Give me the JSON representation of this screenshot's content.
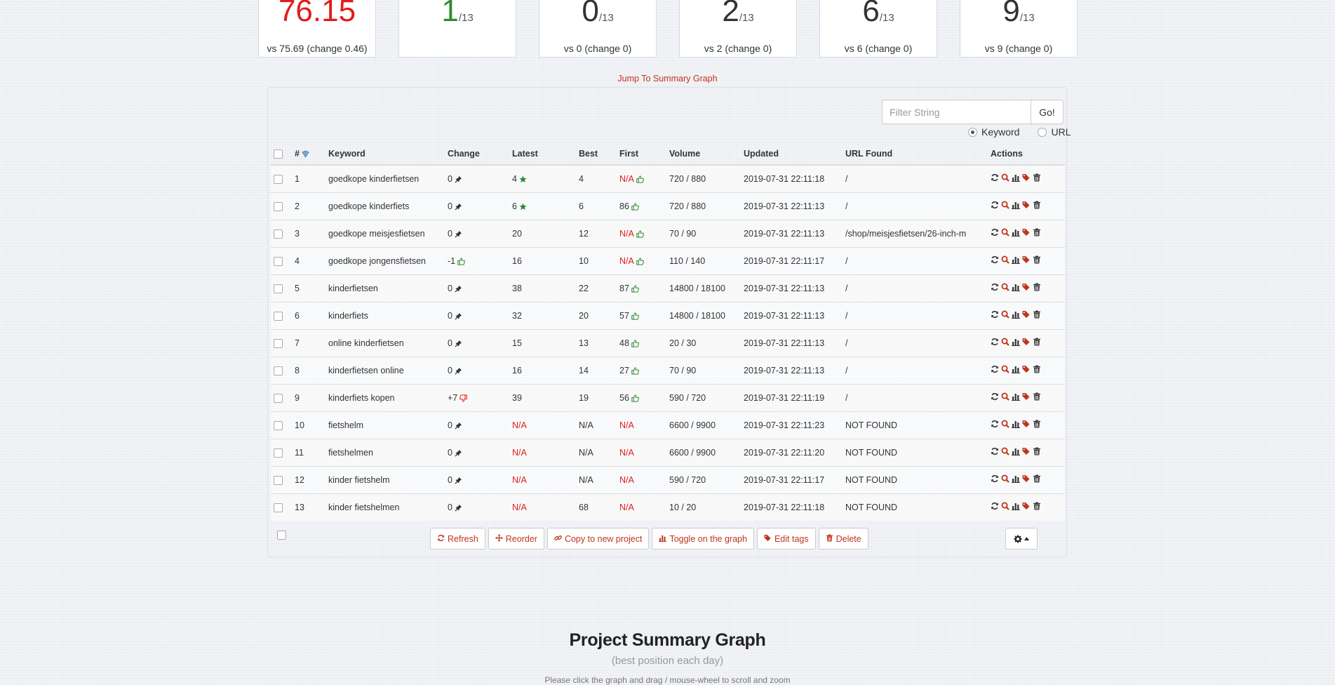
{
  "stats": [
    {
      "value": "76.15",
      "total": "",
      "vs": "vs 75.69 (change 0.46)",
      "tone": "red"
    },
    {
      "value": "1",
      "total": "/13",
      "vs": "",
      "tone": "green"
    },
    {
      "value": "0",
      "total": "/13",
      "vs": "vs 0 (change 0)",
      "tone": ""
    },
    {
      "value": "2",
      "total": "/13",
      "vs": "vs 2 (change 0)",
      "tone": ""
    },
    {
      "value": "6",
      "total": "/13",
      "vs": "vs 6 (change 0)",
      "tone": ""
    },
    {
      "value": "9",
      "total": "/13",
      "vs": "vs 9 (change 0)",
      "tone": ""
    }
  ],
  "jump_link": "Jump To Summary Graph",
  "filter": {
    "placeholder": "Filter String",
    "go_label": "Go!",
    "radio_keyword": "Keyword",
    "radio_url": "URL"
  },
  "table": {
    "headers": {
      "num": "#",
      "keyword": "Keyword",
      "change": "Change",
      "latest": "Latest",
      "best": "Best",
      "first": "First",
      "volume": "Volume",
      "updated": "Updated",
      "url": "URL Found",
      "actions": "Actions"
    },
    "rows": [
      {
        "num": "1",
        "keyword": "goedkope kinderfietsen",
        "change": "0",
        "change_icon": "pin-icon",
        "latest": "4",
        "latest_icon": "star-icon",
        "best": "4",
        "first": "N/A",
        "first_icon": "thumbs-up-icon",
        "volume": "720 / 880",
        "updated": "2019-07-31 22:11:18",
        "url": "/"
      },
      {
        "num": "2",
        "keyword": "goedkope kinderfiets",
        "change": "0",
        "change_icon": "pin-icon",
        "latest": "6",
        "latest_icon": "star-icon",
        "best": "6",
        "first": "86",
        "first_icon": "thumbs-up-icon",
        "volume": "720 / 880",
        "updated": "2019-07-31 22:11:13",
        "url": "/"
      },
      {
        "num": "3",
        "keyword": "goedkope meisjesfietsen",
        "change": "0",
        "change_icon": "pin-icon",
        "latest": "20",
        "latest_icon": "",
        "best": "12",
        "first": "N/A",
        "first_icon": "thumbs-up-icon",
        "volume": "70 / 90",
        "updated": "2019-07-31 22:11:13",
        "url": "/shop/meisjesfietsen/26-inch-m"
      },
      {
        "num": "4",
        "keyword": "goedkope jongensfietsen",
        "change": "-1",
        "change_icon": "thumbs-up-icon",
        "latest": "16",
        "latest_icon": "",
        "best": "10",
        "first": "N/A",
        "first_icon": "thumbs-up-icon",
        "volume": "110 / 140",
        "updated": "2019-07-31 22:11:17",
        "url": "/"
      },
      {
        "num": "5",
        "keyword": "kinderfietsen",
        "change": "0",
        "change_icon": "pin-icon",
        "latest": "38",
        "latest_icon": "",
        "best": "22",
        "first": "87",
        "first_icon": "thumbs-up-icon",
        "volume": "14800 / 18100",
        "updated": "2019-07-31 22:11:13",
        "url": "/"
      },
      {
        "num": "6",
        "keyword": "kinderfiets",
        "change": "0",
        "change_icon": "pin-icon",
        "latest": "32",
        "latest_icon": "",
        "best": "20",
        "first": "57",
        "first_icon": "thumbs-up-icon",
        "volume": "14800 / 18100",
        "updated": "2019-07-31 22:11:13",
        "url": "/"
      },
      {
        "num": "7",
        "keyword": "online kinderfietsen",
        "change": "0",
        "change_icon": "pin-icon",
        "latest": "15",
        "latest_icon": "",
        "best": "13",
        "first": "48",
        "first_icon": "thumbs-up-icon",
        "volume": "20 / 30",
        "updated": "2019-07-31 22:11:13",
        "url": "/"
      },
      {
        "num": "8",
        "keyword": "kinderfietsen online",
        "change": "0",
        "change_icon": "pin-icon",
        "latest": "16",
        "latest_icon": "",
        "best": "14",
        "first": "27",
        "first_icon": "thumbs-up-icon",
        "volume": "70 / 90",
        "updated": "2019-07-31 22:11:13",
        "url": "/"
      },
      {
        "num": "9",
        "keyword": "kinderfiets kopen",
        "change": "+7",
        "change_icon": "thumbs-down-icon",
        "latest": "39",
        "latest_icon": "",
        "best": "19",
        "first": "56",
        "first_icon": "thumbs-up-icon",
        "volume": "590 / 720",
        "updated": "2019-07-31 22:11:19",
        "url": "/"
      },
      {
        "num": "10",
        "keyword": "fietshelm",
        "change": "0",
        "change_icon": "pin-icon",
        "latest": "N/A",
        "latest_icon": "",
        "best": "N/A",
        "first": "N/A",
        "first_icon": "",
        "volume": "6600 / 9900",
        "updated": "2019-07-31 22:11:23",
        "url": "NOT FOUND"
      },
      {
        "num": "11",
        "keyword": "fietshelmen",
        "change": "0",
        "change_icon": "pin-icon",
        "latest": "N/A",
        "latest_icon": "",
        "best": "N/A",
        "first": "N/A",
        "first_icon": "",
        "volume": "6600 / 9900",
        "updated": "2019-07-31 22:11:20",
        "url": "NOT FOUND"
      },
      {
        "num": "12",
        "keyword": "kinder fietshelm",
        "change": "0",
        "change_icon": "pin-icon",
        "latest": "N/A",
        "latest_icon": "",
        "best": "N/A",
        "first": "N/A",
        "first_icon": "",
        "volume": "590 / 720",
        "updated": "2019-07-31 22:11:17",
        "url": "NOT FOUND"
      },
      {
        "num": "13",
        "keyword": "kinder fietshelmen",
        "change": "0",
        "change_icon": "pin-icon",
        "latest": "N/A",
        "latest_icon": "",
        "best": "68",
        "first": "N/A",
        "first_icon": "",
        "volume": "10 / 20",
        "updated": "2019-07-31 22:11:18",
        "url": "NOT FOUND"
      }
    ]
  },
  "bulk_actions": [
    {
      "label": "Refresh",
      "icon": "refresh-icon",
      "name": "refresh-button"
    },
    {
      "label": "Reorder",
      "icon": "move-icon",
      "name": "reorder-button"
    },
    {
      "label": "Copy to new project",
      "icon": "link-icon",
      "name": "copy-to-new-project-button"
    },
    {
      "label": "Toggle on the graph",
      "icon": "bar-chart-icon",
      "name": "toggle-on-graph-button"
    },
    {
      "label": "Edit tags",
      "icon": "tags-icon",
      "name": "edit-tags-button"
    },
    {
      "label": "Delete",
      "icon": "trash-icon",
      "name": "delete-button"
    }
  ],
  "summary": {
    "title": "Project Summary Graph",
    "subtitle": "(best position each day)",
    "note": "Please click the graph and drag / mouse-wheel to scroll and zoom"
  },
  "colors": {
    "accent": "#c0341d",
    "na": "#e41b1b",
    "good": "#2e8b2e"
  }
}
